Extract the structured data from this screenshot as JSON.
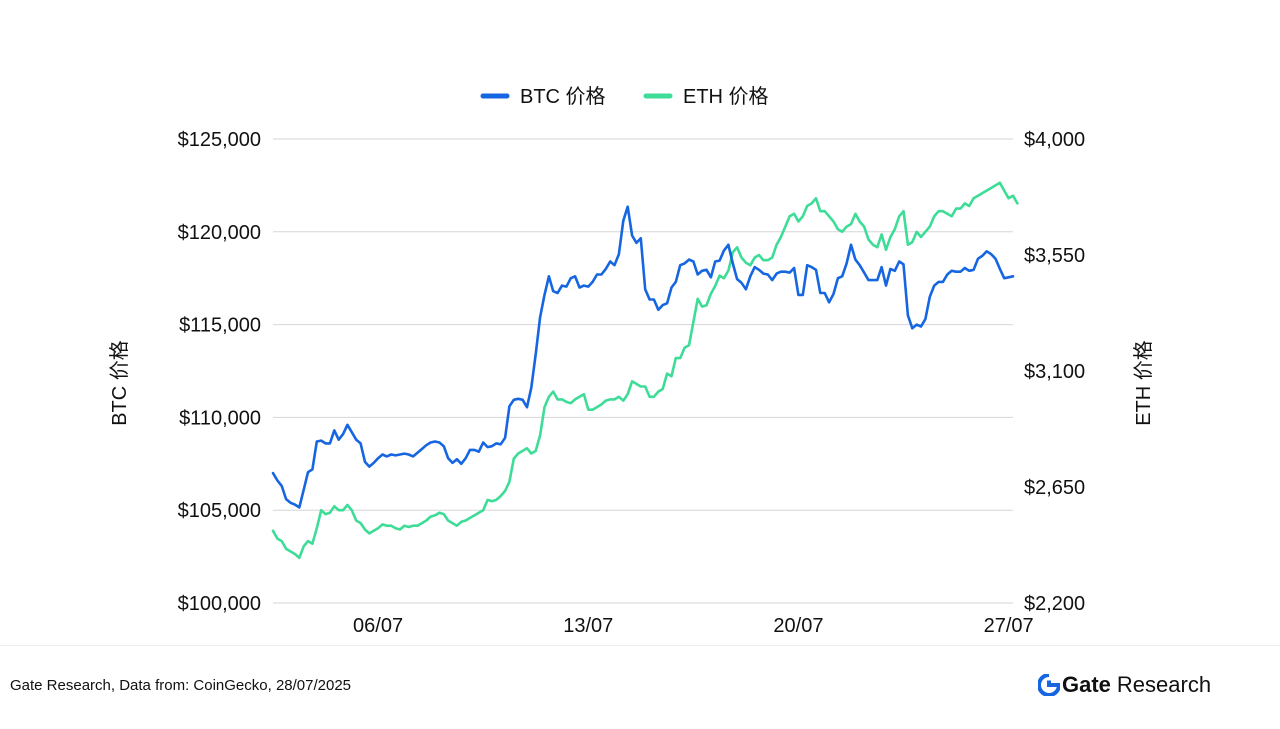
{
  "chart_data": {
    "type": "line",
    "legend": {
      "placement": "top-center",
      "entries": [
        "BTC 价格",
        "ETH 价格"
      ]
    },
    "x_ticks": [
      "06/07",
      "13/07",
      "20/07",
      "27/07"
    ],
    "x_tick_index": [
      24,
      72,
      120,
      168
    ],
    "y_left": {
      "label": "BTC 价格",
      "ticks": [
        "$100,000",
        "$105,000",
        "$110,000",
        "$115,000",
        "$120,000",
        "$125,000"
      ],
      "min": 100000,
      "max": 125000
    },
    "y_right": {
      "label": "ETH 价格",
      "ticks": [
        "$2,200",
        "$2,650",
        "$3,100",
        "$3,550",
        "$4,000"
      ],
      "min": 2200,
      "max": 4000
    },
    "grid": true,
    "series": [
      {
        "name": "BTC 价格",
        "axis": "left",
        "color": "#1566e0",
        "values": [
          107000,
          106600,
          106300,
          105600,
          105400,
          105300,
          105150,
          106100,
          107050,
          107200,
          108700,
          108750,
          108600,
          108600,
          109300,
          108800,
          109100,
          109600,
          109200,
          108800,
          108600,
          107600,
          107350,
          107550,
          107800,
          108000,
          107900,
          108000,
          107950,
          108000,
          108050,
          108000,
          107900,
          108100,
          108300,
          108500,
          108650,
          108700,
          108650,
          108450,
          107800,
          107550,
          107750,
          107500,
          107800,
          108250,
          108250,
          108150,
          108650,
          108400,
          108450,
          108600,
          108550,
          108900,
          110600,
          110950,
          111000,
          110950,
          110550,
          111600,
          113400,
          115400,
          116600,
          117600,
          116800,
          116700,
          117100,
          117050,
          117500,
          117600,
          117000,
          117100,
          117050,
          117300,
          117700,
          117700,
          118000,
          118400,
          118200,
          118800,
          120600,
          121350,
          119800,
          119400,
          119650,
          116900,
          116350,
          116350,
          115800,
          116050,
          116150,
          117000,
          117300,
          118200,
          118300,
          118500,
          118400,
          117700,
          117900,
          117950,
          117550,
          118400,
          118450,
          119000,
          119300,
          118300,
          117450,
          117250,
          116900,
          117600,
          118100,
          117950,
          117750,
          117700,
          117400,
          117750,
          117850,
          117850,
          117800,
          118050,
          116600,
          116600,
          118200,
          118100,
          117950,
          116700,
          116700,
          116200,
          116650,
          117500,
          117600,
          118300,
          119300,
          118500,
          118200,
          117800,
          117400,
          117400,
          117400,
          118100,
          117100,
          118000,
          117900,
          118400,
          118250,
          115500,
          114800,
          115000,
          114900,
          115300,
          116500,
          117100,
          117300,
          117300,
          117700,
          117900,
          117850,
          117850,
          118050,
          117900,
          117950,
          118550,
          118700,
          118950,
          118800,
          118550,
          118000,
          117500,
          117550,
          117600
        ]
      },
      {
        "name": "ETH 价格",
        "axis": "right",
        "color": "#3ddc97",
        "values": [
          2480,
          2450,
          2440,
          2410,
          2400,
          2390,
          2375,
          2420,
          2440,
          2430,
          2490,
          2560,
          2545,
          2550,
          2575,
          2560,
          2560,
          2580,
          2560,
          2520,
          2510,
          2485,
          2470,
          2480,
          2490,
          2505,
          2500,
          2500,
          2490,
          2485,
          2500,
          2495,
          2500,
          2500,
          2510,
          2520,
          2535,
          2540,
          2550,
          2545,
          2520,
          2510,
          2500,
          2515,
          2520,
          2530,
          2540,
          2550,
          2560,
          2600,
          2595,
          2600,
          2615,
          2635,
          2670,
          2760,
          2780,
          2790,
          2800,
          2780,
          2790,
          2850,
          2960,
          3000,
          3020,
          2990,
          2990,
          2980,
          2975,
          2990,
          3000,
          3010,
          2950,
          2950,
          2960,
          2970,
          2985,
          2990,
          2990,
          3000,
          2985,
          3010,
          3060,
          3050,
          3040,
          3040,
          3000,
          3000,
          3020,
          3030,
          3090,
          3080,
          3150,
          3150,
          3190,
          3200,
          3290,
          3380,
          3350,
          3355,
          3400,
          3430,
          3470,
          3460,
          3490,
          3560,
          3580,
          3540,
          3520,
          3510,
          3540,
          3550,
          3530,
          3530,
          3540,
          3590,
          3620,
          3660,
          3700,
          3710,
          3680,
          3700,
          3740,
          3750,
          3770,
          3720,
          3720,
          3700,
          3680,
          3650,
          3640,
          3660,
          3670,
          3710,
          3680,
          3660,
          3610,
          3590,
          3580,
          3630,
          3570,
          3620,
          3650,
          3700,
          3720,
          3590,
          3600,
          3640,
          3620,
          3640,
          3660,
          3700,
          3720,
          3720,
          3710,
          3700,
          3730,
          3730,
          3750,
          3740,
          3770,
          3780,
          3790,
          3800,
          3810,
          3820,
          3830,
          3800,
          3770,
          3780,
          3750
        ]
      }
    ]
  },
  "footer": {
    "source": "Gate Research, Data from: CoinGecko, 28/07/2025",
    "brand_name": "Gate",
    "brand_suffix": "Research",
    "brand_color": "#1566e0"
  }
}
